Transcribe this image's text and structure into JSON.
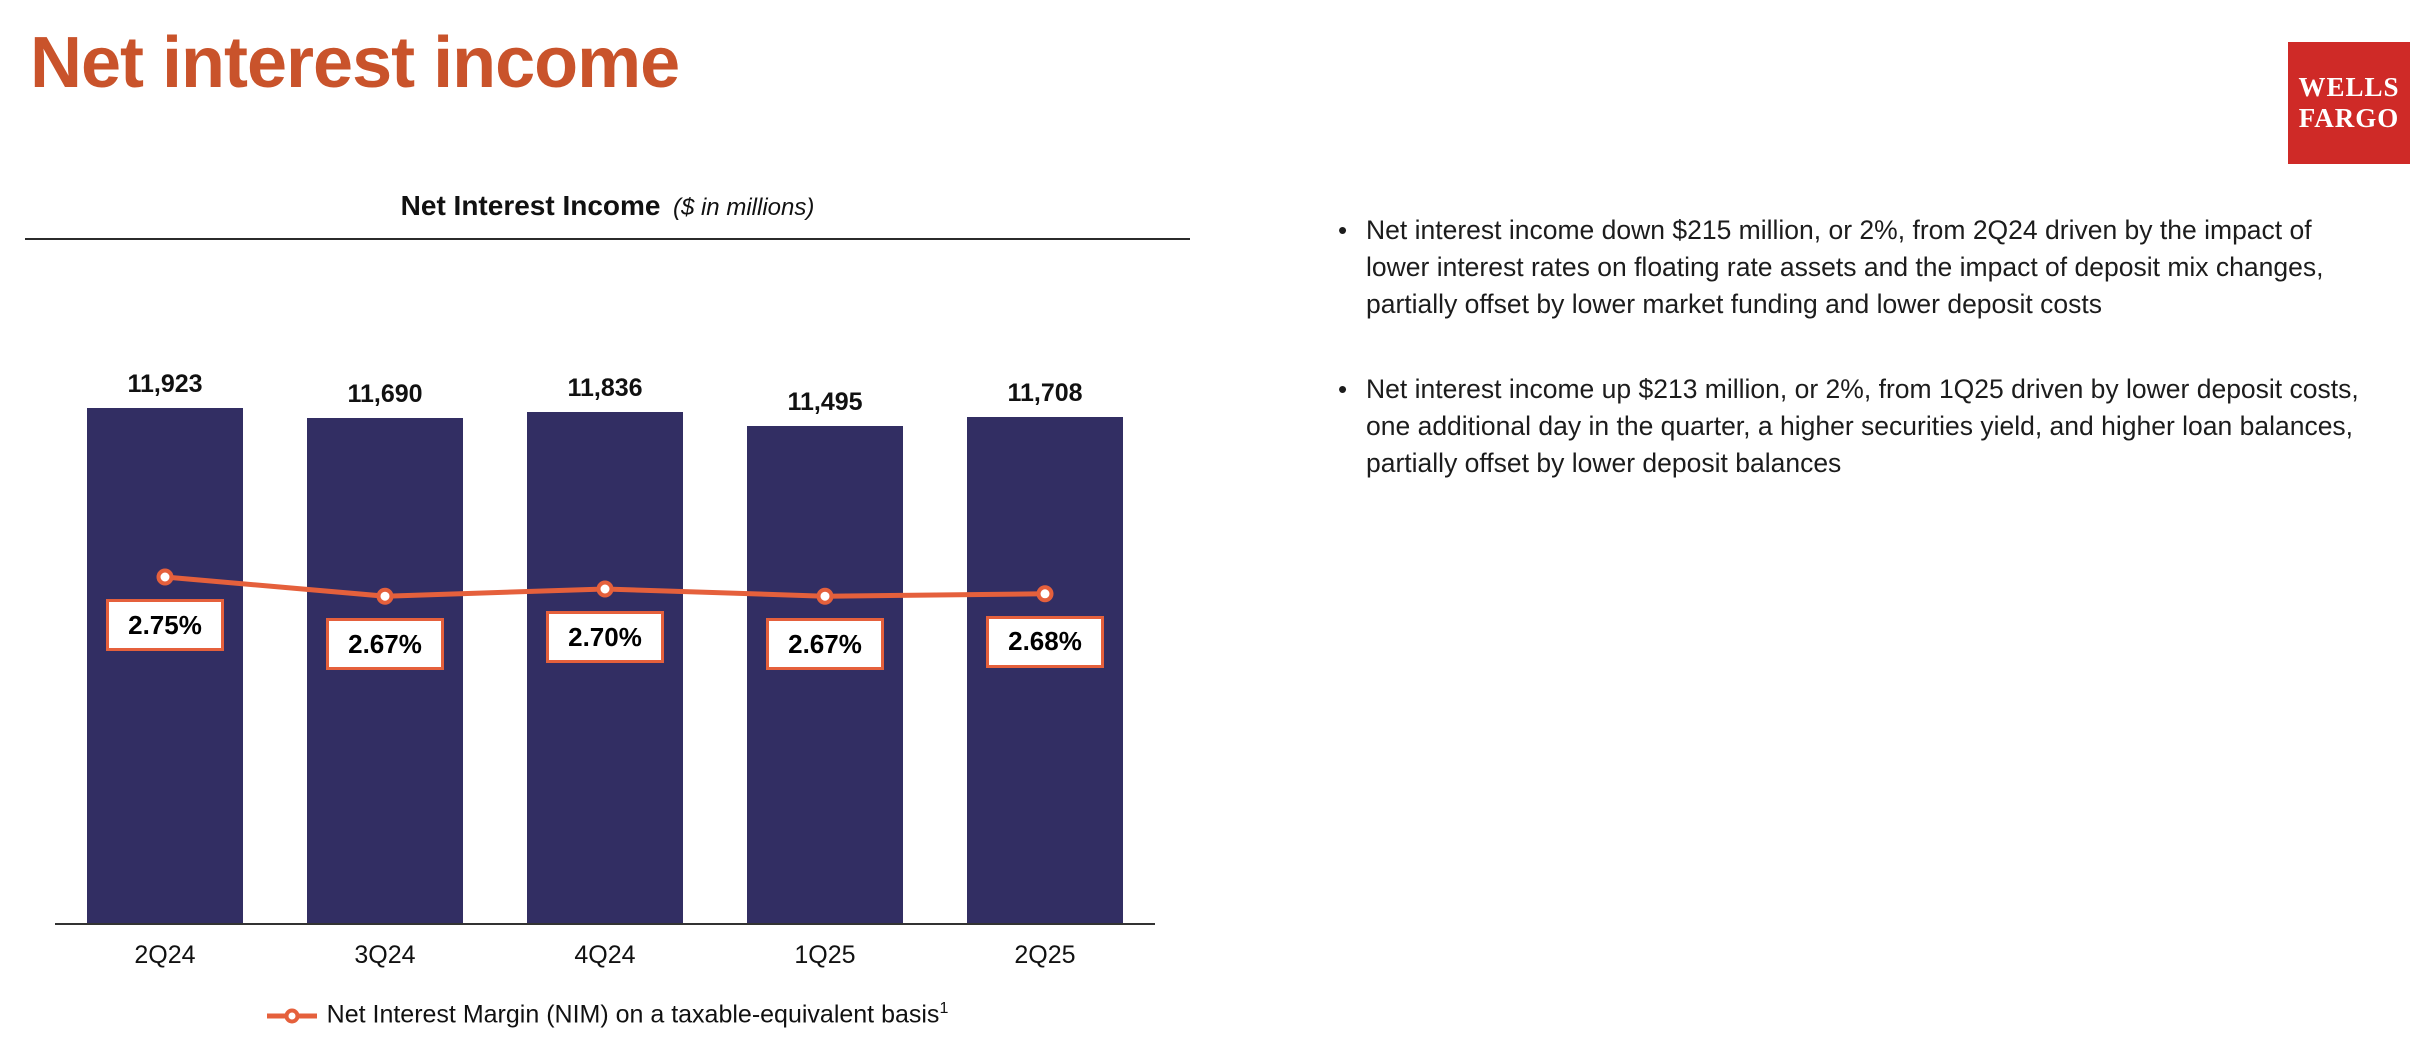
{
  "page": {
    "title": "Net interest income"
  },
  "colors": {
    "title": "#C9532B",
    "logo_red": "#CF2A27",
    "bar": "#322E63",
    "line": "#E5603C"
  },
  "logo": {
    "line1": "WELLS",
    "line2": "FARGO"
  },
  "chart": {
    "title": "Net Interest Income",
    "subtitle": "($ in millions)",
    "legend": "Net Interest Margin (NIM) on a taxable-equivalent basis",
    "legend_footnote": "1"
  },
  "chart_data": {
    "type": "bar",
    "title": "Net Interest Income ($ in millions)",
    "categories": [
      "2Q24",
      "3Q24",
      "4Q24",
      "1Q25",
      "2Q25"
    ],
    "series": [
      {
        "name": "Net Interest Income ($ in millions)",
        "type": "bar",
        "values": [
          11923,
          11690,
          11836,
          11495,
          11708
        ],
        "labels": [
          "11,923",
          "11,690",
          "11,836",
          "11,495",
          "11,708"
        ]
      },
      {
        "name": "Net Interest Margin (NIM) on a taxable-equivalent basis",
        "type": "line",
        "values": [
          2.75,
          2.67,
          2.7,
          2.67,
          2.68
        ],
        "labels": [
          "2.75%",
          "2.67%",
          "2.70%",
          "2.67%",
          "2.68%"
        ]
      }
    ],
    "ylim": [
      0,
      12000
    ],
    "grid": false,
    "legend_position": "bottom",
    "colors": {
      "bar": "#322E63",
      "line": "#E5603C"
    }
  },
  "bullets": [
    "Net interest income down $215 million, or 2%, from 2Q24 driven by the impact of lower interest rates on floating rate assets and the impact of deposit mix changes, partially offset by lower market funding and lower deposit costs",
    "Net interest income up $213 million, or 2%, from 1Q25 driven by lower deposit costs, one additional day in the quarter, a higher securities yield, and higher loan balances, partially offset by lower deposit balances"
  ]
}
